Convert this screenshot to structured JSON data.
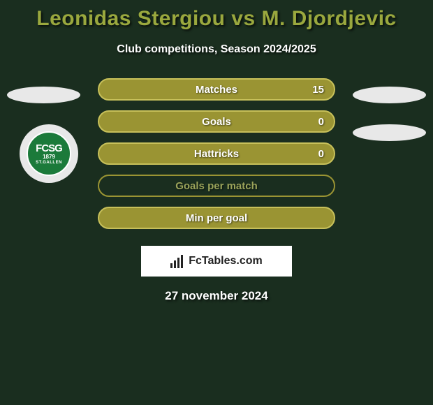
{
  "title_color": "#9aa83e",
  "title": "Leonidas Stergiou vs M. Djordjevic",
  "subtitle": "Club competitions, Season 2024/2025",
  "background": "#1a2e1f",
  "club_badge": {
    "top": "FCSG",
    "year": "1879",
    "bottom": "ST.GALLEN",
    "bg": "#1b7a3a"
  },
  "bars": [
    {
      "label": "Matches",
      "value": "15",
      "fill": "#9a9433",
      "border": "#c7c05a",
      "text": "#ffffff"
    },
    {
      "label": "Goals",
      "value": "0",
      "fill": "#9a9433",
      "border": "#c7c05a",
      "text": "#ffffff"
    },
    {
      "label": "Hattricks",
      "value": "0",
      "fill": "#9a9433",
      "border": "#c7c05a",
      "text": "#ffffff"
    },
    {
      "label": "Goals per match",
      "value": "",
      "fill": "transparent",
      "border": "#9a9433",
      "text": "#9aa35a"
    },
    {
      "label": "Min per goal",
      "value": "",
      "fill": "#9a9433",
      "border": "#c7c05a",
      "text": "#ffffff"
    }
  ],
  "logo_text": "FcTables.com",
  "date": "27 november 2024",
  "ellipse_color": "#e8e8e8",
  "font_sizes": {
    "title": 30,
    "subtitle": 16,
    "bar": 15,
    "date": 17
  }
}
